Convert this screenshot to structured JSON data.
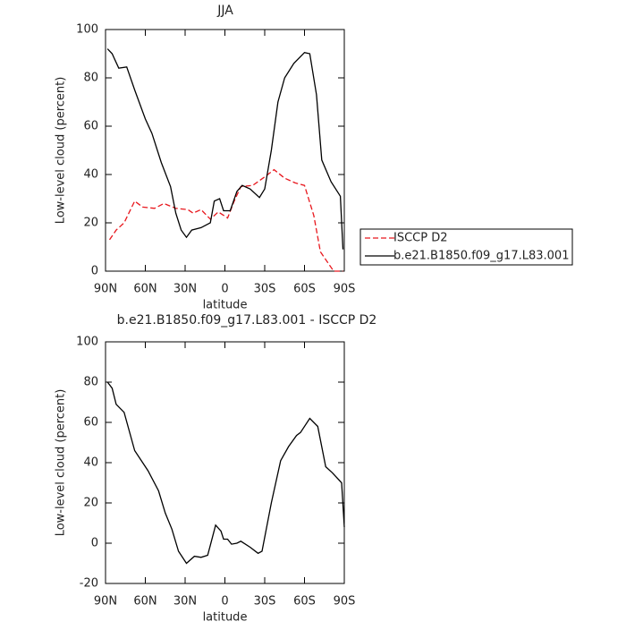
{
  "chart_data": [
    {
      "type": "line",
      "title": "JJA",
      "x_label": "latitude",
      "y_label": "Low-level cloud (percent)",
      "xlim": [
        90,
        -90
      ],
      "xticks": [
        {
          "value": 90,
          "label": "90N"
        },
        {
          "value": 60,
          "label": "60N"
        },
        {
          "value": 30,
          "label": "30N"
        },
        0,
        {
          "value": -30,
          "label": "30S"
        },
        {
          "value": -60,
          "label": "60S"
        },
        {
          "value": -90,
          "label": "90S"
        }
      ],
      "ylim": [
        0,
        100
      ],
      "yticks": [
        0,
        20,
        40,
        60,
        80,
        100
      ],
      "legend": "right",
      "series": [
        {
          "name": "ISCCP D2",
          "color": "#e8171d",
          "line_style": "dashed",
          "x": [
            87,
            82,
            76,
            68,
            62,
            53,
            46,
            37,
            28,
            24,
            18,
            11,
            5,
            -2,
            -7,
            -12,
            -21,
            -30,
            -37,
            -45,
            -53,
            -60,
            -67,
            -72,
            -77,
            -82,
            -89
          ],
          "values": [
            13,
            17,
            20,
            29,
            26.5,
            26,
            28,
            26,
            25.5,
            24,
            25.5,
            21.5,
            24.5,
            22,
            29,
            35,
            35.5,
            39,
            42,
            38.5,
            36.5,
            35.5,
            23,
            8,
            4,
            0,
            0
          ]
        },
        {
          "name": "b.e21.B1850.f09_g17.L83.001",
          "color": "#000000",
          "line_style": "solid",
          "x": [
            88.5,
            85,
            80,
            74,
            68,
            60,
            55,
            48,
            41,
            37,
            33,
            29,
            25,
            18,
            11,
            8,
            4,
            1,
            -4,
            -9,
            -13,
            -19,
            -26,
            -30,
            -35,
            -40,
            -45,
            -52,
            -60,
            -64,
            -69,
            -73,
            -80,
            -87,
            -89
          ],
          "values": [
            92,
            90,
            84,
            84.5,
            75,
            63,
            57,
            45,
            35,
            24,
            17,
            14,
            17,
            18,
            20,
            29,
            30,
            25,
            25,
            33,
            35.5,
            34,
            30.5,
            34,
            50,
            70,
            80,
            86,
            90.5,
            90,
            73,
            46,
            37,
            31,
            9
          ]
        }
      ]
    },
    {
      "type": "line",
      "title": "b.e21.B1850.f09_g17.L83.001 - ISCCP D2",
      "x_label": "latitude",
      "y_label": "Low-level cloud (percent)",
      "xlim": [
        90,
        -90
      ],
      "xticks": [
        {
          "value": 90,
          "label": "90N"
        },
        {
          "value": 60,
          "label": "60N"
        },
        {
          "value": 30,
          "label": "30N"
        },
        0,
        {
          "value": -30,
          "label": "30S"
        },
        {
          "value": -60,
          "label": "60S"
        },
        {
          "value": -90,
          "label": "90S"
        }
      ],
      "ylim": [
        -20,
        100
      ],
      "yticks": [
        -20,
        0,
        20,
        40,
        60,
        80,
        100
      ],
      "series": [
        {
          "color": "#000000",
          "line_style": "solid",
          "x": [
            88.5,
            85,
            82,
            76,
            68,
            58,
            50,
            45,
            40,
            35,
            29,
            23,
            18,
            13,
            11,
            7,
            3,
            1,
            -2,
            -5,
            -9,
            -12,
            -19,
            -25,
            -28,
            -35,
            -42,
            -48,
            -54,
            -57,
            -64,
            -70,
            -76,
            -81,
            -88,
            -90
          ],
          "values": [
            80,
            77,
            69,
            65,
            46,
            36,
            26,
            15,
            7,
            -4,
            -10,
            -6.5,
            -7,
            -6,
            -1,
            9,
            6,
            2,
            2,
            -0.5,
            0,
            1,
            -2,
            -5,
            -4,
            20,
            41,
            48,
            53.5,
            55,
            62,
            58,
            38,
            35,
            30,
            8
          ]
        }
      ]
    }
  ]
}
